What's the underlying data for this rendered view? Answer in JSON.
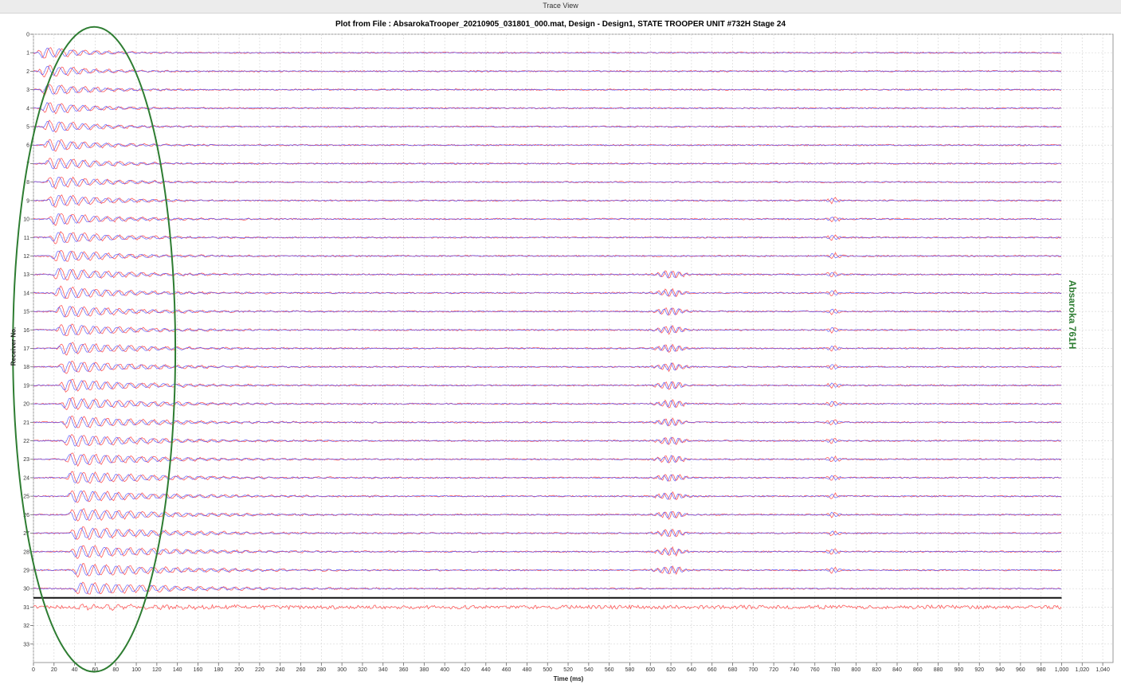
{
  "window": {
    "title": "Trace View"
  },
  "plot": {
    "title": "Plot from File : AbsarokaTrooper_20210905_031801_000.mat, Design - Design1, STATE TROOPER UNIT #732H Stage 24",
    "side_label": "Absaroka 761H"
  },
  "chart_data": {
    "type": "line",
    "title": "Plot from File : AbsarokaTrooper_20210905_031801_000.mat, Design - Design1, STATE TROOPER UNIT #732H Stage 24",
    "xlabel": "Time (ms)",
    "ylabel": "Receiver No.",
    "xlim": [
      0,
      1050
    ],
    "ylim": [
      0,
      34
    ],
    "y_reversed": true,
    "x_ticks": [
      "0",
      "20",
      "40",
      "60",
      "80",
      "100",
      "120",
      "140",
      "160",
      "180",
      "200",
      "220",
      "240",
      "260",
      "280",
      "300",
      "320",
      "340",
      "360",
      "380",
      "400",
      "420",
      "440",
      "460",
      "480",
      "500",
      "520",
      "540",
      "560",
      "580",
      "600",
      "620",
      "640",
      "660",
      "680",
      "700",
      "720",
      "740",
      "760",
      "780",
      "800",
      "820",
      "840",
      "860",
      "880",
      "900",
      "920",
      "940",
      "960",
      "980",
      "1,000",
      "1,020",
      "1,040"
    ],
    "y_ticks": [
      "0",
      "1",
      "2",
      "3",
      "4",
      "5",
      "6",
      "7",
      "8",
      "9",
      "10",
      "11",
      "12",
      "13",
      "14",
      "15",
      "16",
      "17",
      "18",
      "19",
      "20",
      "21",
      "22",
      "23",
      "24",
      "25",
      "26",
      "27",
      "28",
      "29",
      "30",
      "31",
      "32",
      "33"
    ],
    "grid": true,
    "series": [
      {
        "color": "#ff5a5a",
        "receivers": [
          1,
          2,
          3,
          4,
          5,
          6,
          7,
          8,
          9,
          10,
          11,
          12,
          13,
          14,
          15,
          16,
          17,
          18,
          19,
          20,
          21,
          22,
          23,
          24,
          25,
          26,
          27,
          28,
          29,
          30,
          31
        ]
      },
      {
        "color": "#4a4aff",
        "receivers": [
          1,
          2,
          3,
          4,
          5,
          6,
          7,
          8,
          9,
          10,
          11,
          12,
          13,
          14,
          15,
          16,
          17,
          18,
          19,
          20,
          21,
          22,
          23,
          24,
          25,
          26,
          27,
          28,
          29,
          30
        ]
      }
    ],
    "trace_end_ms": 1000,
    "separator_after_receiver": 30,
    "annotations": [
      {
        "shape": "ellipse",
        "color": "#2e7d32",
        "x_range_ms": [
          -20,
          138
        ],
        "y_range_receiver": [
          -0.4,
          34.5
        ]
      }
    ]
  }
}
